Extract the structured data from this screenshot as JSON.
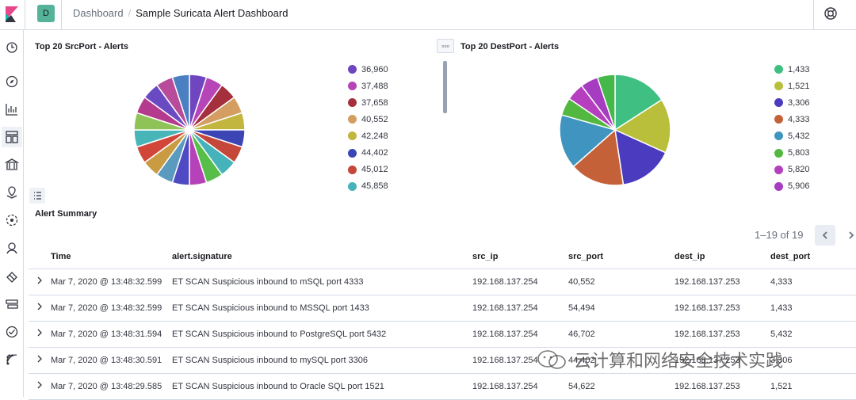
{
  "header": {
    "space_initial": "D",
    "breadcrumbs": [
      "Dashboard",
      "Sample Suricata Alert Dashboard"
    ]
  },
  "sidenav": {
    "icons": [
      "clock-icon",
      "compass-icon",
      "visualize-icon",
      "dashboard-icon",
      "canvas-icon",
      "maps-icon",
      "ml-icon",
      "infrastructure-icon",
      "logs-icon",
      "apm-icon",
      "uptime-icon",
      "siem-icon"
    ]
  },
  "panels": {
    "src": {
      "title": "Top 20 SrcPort - Alerts",
      "legend": [
        {
          "label": "36,960",
          "color": "#6f46c0"
        },
        {
          "label": "37,488",
          "color": "#b645b8"
        },
        {
          "label": "37,658",
          "color": "#a3303c"
        },
        {
          "label": "40,552",
          "color": "#d49e62"
        },
        {
          "label": "42,248",
          "color": "#c2b63f"
        },
        {
          "label": "44,402",
          "color": "#3b45b4"
        },
        {
          "label": "45,012",
          "color": "#c5473a"
        },
        {
          "label": "45,858",
          "color": "#45b3b9"
        }
      ],
      "slice_colors": [
        "#6f46c0",
        "#b645b8",
        "#a3303c",
        "#d49e62",
        "#c2b63f",
        "#3b45b4",
        "#c5473a",
        "#45b3b9",
        "#58be4a",
        "#b642b9",
        "#4f4ac4",
        "#5a9abf",
        "#c99c43",
        "#d2463a",
        "#48b6b8",
        "#8fc257",
        "#b43a8d",
        "#6a4ac2",
        "#b84b9a",
        "#4a7fc1"
      ],
      "slice_values": [
        1,
        1,
        1,
        1,
        1,
        1,
        1,
        1,
        1,
        1,
        1,
        1,
        1,
        1,
        1,
        1,
        1,
        1,
        1,
        1
      ]
    },
    "dest": {
      "title": "Top 20 DestPort - Alerts",
      "legend": [
        {
          "label": "1,433",
          "color": "#3fbf82"
        },
        {
          "label": "1,521",
          "color": "#b9bf3b"
        },
        {
          "label": "3,306",
          "color": "#4b3bbf"
        },
        {
          "label": "4,333",
          "color": "#c46138"
        },
        {
          "label": "5,432",
          "color": "#3f95bf"
        },
        {
          "label": "5,803",
          "color": "#53b83f"
        },
        {
          "label": "5,820",
          "color": "#b53fbf"
        },
        {
          "label": "5,906",
          "color": "#a63cbf"
        }
      ],
      "slices": [
        {
          "color": "#3fbf82",
          "value": 4
        },
        {
          "color": "#b9bf3b",
          "value": 4
        },
        {
          "color": "#4b3bbf",
          "value": 4
        },
        {
          "color": "#c46138",
          "value": 4
        },
        {
          "color": "#3f95bf",
          "value": 4
        },
        {
          "color": "#53b83f",
          "value": 1.3
        },
        {
          "color": "#b53fbf",
          "value": 1.3
        },
        {
          "color": "#a63cbf",
          "value": 1.3
        },
        {
          "color": "#45b84a",
          "value": 1.3
        }
      ]
    }
  },
  "summary": {
    "title": "Alert Summary",
    "pager": "1–19 of 19",
    "columns": [
      "Time",
      "alert.signature",
      "src_ip",
      "src_port",
      "dest_ip",
      "dest_port"
    ],
    "rows": [
      [
        "Mar 7, 2020 @ 13:48:32.599",
        "ET SCAN Suspicious inbound to mSQL port 4333",
        "192.168.137.254",
        "40,552",
        "192.168.137.253",
        "4,333"
      ],
      [
        "Mar 7, 2020 @ 13:48:32.599",
        "ET SCAN Suspicious inbound to MSSQL port 1433",
        "192.168.137.254",
        "54,494",
        "192.168.137.253",
        "1,433"
      ],
      [
        "Mar 7, 2020 @ 13:48:31.594",
        "ET SCAN Suspicious inbound to PostgreSQL port 5432",
        "192.168.137.254",
        "46,702",
        "192.168.137.253",
        "5,432"
      ],
      [
        "Mar 7, 2020 @ 13:48:30.591",
        "ET SCAN Suspicious inbound to mySQL port 3306",
        "192.168.137.254",
        "44,402",
        "192.168.137.253",
        "3,306"
      ],
      [
        "Mar 7, 2020 @ 13:48:29.585",
        "ET SCAN Suspicious inbound to Oracle SQL port 1521",
        "192.168.137.254",
        "54,622",
        "192.168.137.253",
        "1,521"
      ]
    ]
  },
  "watermark": "云计算和网络安全技术实践"
}
